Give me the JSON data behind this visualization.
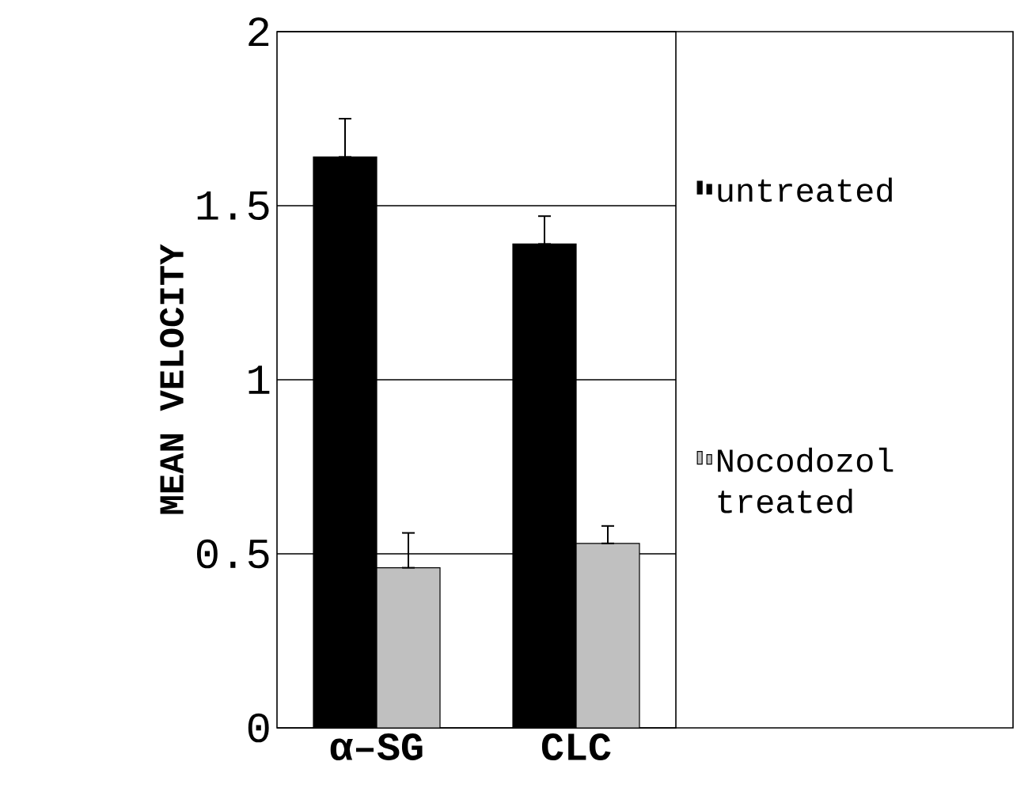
{
  "chart_data": {
    "type": "bar",
    "ylabel": "MEAN VELOCITY",
    "categories": [
      "α–SG",
      "CLC"
    ],
    "series": [
      {
        "name": "untreated",
        "color": "#000000",
        "values": [
          1.64,
          1.39
        ],
        "errors": [
          [
            1.64,
            1.75
          ],
          [
            1.39,
            1.47
          ]
        ]
      },
      {
        "name": "Nocodozol treated",
        "color": "#c0c0c0",
        "values": [
          0.46,
          0.53
        ],
        "errors": [
          [
            0.46,
            0.56
          ],
          [
            0.53,
            0.58
          ]
        ]
      }
    ],
    "ylim": [
      0,
      2
    ],
    "yticks": [
      0,
      0.5,
      1,
      1.5,
      2
    ],
    "grid": "y",
    "legend": "right"
  }
}
